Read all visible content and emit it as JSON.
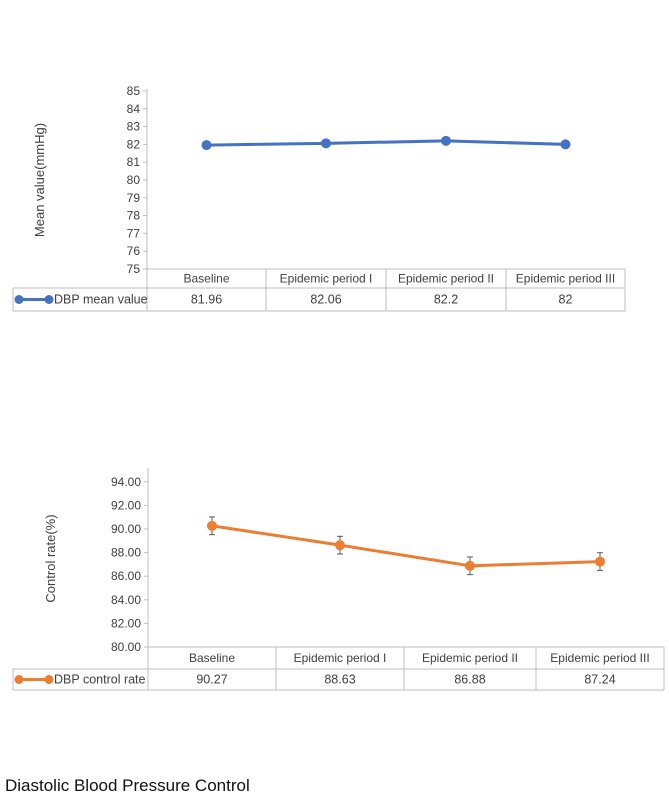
{
  "caption": "Diastolic Blood Pressure Control",
  "chart_data": [
    {
      "type": "line",
      "title": "",
      "ylabel": "Mean value(mmHg)",
      "xlabel": "",
      "categories": [
        "Baseline",
        "Epidemic period I",
        "Epidemic period II",
        "Epidemic period III"
      ],
      "series": [
        {
          "name": "DBP mean value",
          "values": [
            81.96,
            82.06,
            82.2,
            82
          ],
          "color": "#4472C4"
        }
      ],
      "table_values": [
        "81.96",
        "82.06",
        "82.2",
        "82"
      ],
      "ylim": [
        75,
        85
      ],
      "ytick_step": 1,
      "ytick_labels": [
        "75",
        "76",
        "77",
        "78",
        "79",
        "80",
        "81",
        "82",
        "83",
        "84",
        "85"
      ],
      "error_bars": false,
      "legend": "data-table"
    },
    {
      "type": "line",
      "title": "",
      "ylabel": "Control rate(%)",
      "xlabel": "",
      "categories": [
        "Baseline",
        "Epidemic period I",
        "Epidemic period II",
        "Epidemic period III"
      ],
      "series": [
        {
          "name": "DBP control rate",
          "values": [
            90.27,
            88.63,
            86.88,
            87.24
          ],
          "color": "#ED7D31"
        }
      ],
      "table_values": [
        "90.27",
        "88.63",
        "86.88",
        "87.24"
      ],
      "ylim": [
        80,
        95
      ],
      "ytick_step": 2,
      "ytick_labels": [
        "80.00",
        "82.00",
        "84.00",
        "86.00",
        "88.00",
        "90.00",
        "92.00",
        "94.00"
      ],
      "error_bars": true,
      "error_margin": 0.75,
      "legend": "data-table"
    }
  ]
}
